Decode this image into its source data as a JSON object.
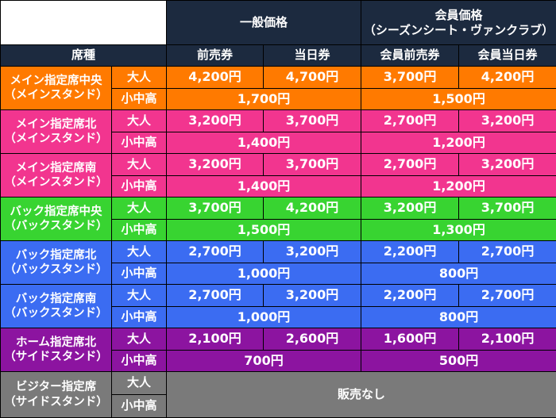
{
  "header": {
    "group_general": "一般価格",
    "group_member_line1": "会員価格",
    "group_member_line2": "（シーズンシート・ヴァンクラブ）",
    "seat_col": "席種",
    "col_advance": "前売券",
    "col_same_day": "当日券",
    "col_member_advance": "会員前売券",
    "col_member_same_day": "会員当日券"
  },
  "colors": {
    "header": "#1c2a3f",
    "main_center": "#ff7a00",
    "main_north": "#f2358f",
    "main_south": "#f2358f",
    "back_center": "#38d431",
    "back_north": "#3b6cf2",
    "back_south": "#3b6cf2",
    "home_north": "#8c14a0",
    "visitor": "#7a7a7a"
  },
  "rows": [
    {
      "key": "main_center",
      "seat_line1": "メイン指定席中央",
      "seat_line2": "（メインスタンド）",
      "adult_label": "大人",
      "youth_label": "小中高",
      "adult": [
        "4,200円",
        "4,700円",
        "3,700円",
        "4,200円"
      ],
      "youth_general": "1,700円",
      "youth_member": "1,500円"
    },
    {
      "key": "main_north",
      "seat_line1": "メイン指定席北",
      "seat_line2": "（メインスタンド）",
      "adult_label": "大人",
      "youth_label": "小中高",
      "adult": [
        "3,200円",
        "3,700円",
        "2,700円",
        "3,200円"
      ],
      "youth_general": "1,400円",
      "youth_member": "1,200円"
    },
    {
      "key": "main_south",
      "seat_line1": "メイン指定席南",
      "seat_line2": "（メインスタンド）",
      "adult_label": "大人",
      "youth_label": "小中高",
      "adult": [
        "3,200円",
        "3,700円",
        "2,700円",
        "3,200円"
      ],
      "youth_general": "1,400円",
      "youth_member": "1,200円"
    },
    {
      "key": "back_center",
      "seat_line1": "バック指定席中央",
      "seat_line2": "（バックスタンド）",
      "adult_label": "大人",
      "youth_label": "小中高",
      "adult": [
        "3,700円",
        "4,200円",
        "3,200円",
        "3,700円"
      ],
      "youth_general": "1,500円",
      "youth_member": "1,300円"
    },
    {
      "key": "back_north",
      "seat_line1": "バック指定席北",
      "seat_line2": "（バックスタンド）",
      "adult_label": "大人",
      "youth_label": "小中高",
      "adult": [
        "2,700円",
        "3,200円",
        "2,200円",
        "2,700円"
      ],
      "youth_general": "1,000円",
      "youth_member": "800円"
    },
    {
      "key": "back_south",
      "seat_line1": "バック指定席南",
      "seat_line2": "（バックスタンド）",
      "adult_label": "大人",
      "youth_label": "小中高",
      "adult": [
        "2,700円",
        "3,200円",
        "2,200円",
        "2,700円"
      ],
      "youth_general": "1,000円",
      "youth_member": "800円"
    },
    {
      "key": "home_north",
      "seat_line1": "ホーム指定席北",
      "seat_line2": "（サイドスタンド）",
      "adult_label": "大人",
      "youth_label": "小中高",
      "adult": [
        "2,100円",
        "2,600円",
        "1,600円",
        "2,100円"
      ],
      "youth_general": "700円",
      "youth_member": "500円"
    },
    {
      "key": "visitor",
      "seat_line1": "ビジター指定席",
      "seat_line2": "（サイドスタンド）",
      "adult_label": "大人",
      "youth_label": "小中高",
      "no_sale": "販売なし"
    }
  ]
}
